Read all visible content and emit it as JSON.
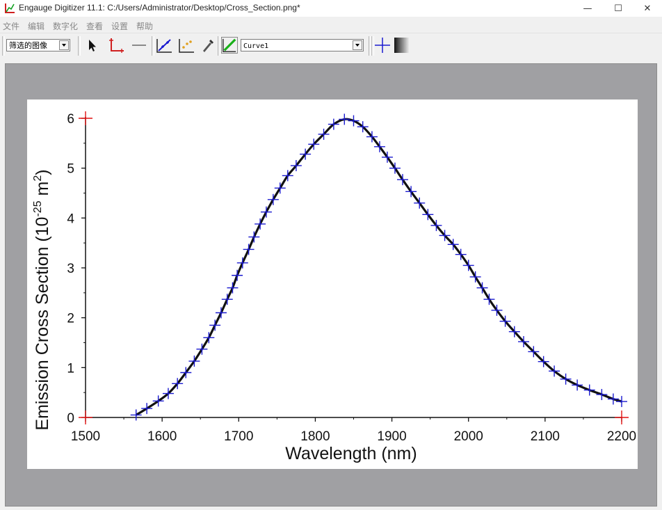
{
  "window": {
    "title": "Engauge Digitizer 11.1: C:/Users/Administrator/Desktop/Cross_Section.png*",
    "minimize_glyph": "—",
    "maximize_glyph": "☐",
    "close_glyph": "✕"
  },
  "menu": [
    {
      "label": "文件"
    },
    {
      "label": "编辑"
    },
    {
      "label": "数字化"
    },
    {
      "label": "查看"
    },
    {
      "label": "设置"
    },
    {
      "label": "帮助"
    }
  ],
  "toolbar": {
    "background_select": "筛选的图像",
    "curve_select": "Curve1",
    "icons": [
      "select-arrow-icon",
      "axis-point-icon",
      "scale-bar-icon",
      "curve-point-icon",
      "point-match-icon",
      "color-picker-icon",
      "segment-fill-icon",
      "checklist-guide-icon",
      "gradient-icon"
    ]
  },
  "colors": {
    "curve_marker": "#1a1ad0",
    "axis_marker": "#e01010",
    "curve_line": "#111111"
  },
  "chart_data": {
    "type": "line",
    "x_tick_labels": [
      "1500",
      "1600",
      "1700",
      "1800",
      "1900",
      "2000",
      "2100",
      "2200"
    ],
    "y_tick_labels": [
      "0",
      "1",
      "2",
      "3",
      "4",
      "5",
      "6"
    ],
    "x_ticks": [
      1500,
      1600,
      1700,
      1800,
      1900,
      2000,
      2100,
      2200
    ],
    "y_ticks": [
      0,
      1,
      2,
      3,
      4,
      5,
      6
    ],
    "xlabel": "Wavelength (nm)",
    "ylabel_parts": {
      "main": "Emission Cross Section (10",
      "exp": "-25",
      "unit": " m",
      "unit_exp": "2",
      "close": ")"
    },
    "xlim": [
      1500,
      2200
    ],
    "ylim": [
      0,
      6
    ],
    "axis_points": [
      [
        1500,
        6
      ],
      [
        1500,
        0
      ],
      [
        2200,
        0
      ]
    ],
    "curve_points": [
      [
        1566,
        0.05
      ],
      [
        1580,
        0.18
      ],
      [
        1595,
        0.33
      ],
      [
        1608,
        0.48
      ],
      [
        1620,
        0.68
      ],
      [
        1631,
        0.9
      ],
      [
        1642,
        1.13
      ],
      [
        1652,
        1.37
      ],
      [
        1661,
        1.6
      ],
      [
        1669,
        1.85
      ],
      [
        1677,
        2.1
      ],
      [
        1685,
        2.37
      ],
      [
        1692,
        2.6
      ],
      [
        1698,
        2.85
      ],
      [
        1705,
        3.1
      ],
      [
        1713,
        3.37
      ],
      [
        1720,
        3.62
      ],
      [
        1728,
        3.88
      ],
      [
        1736,
        4.12
      ],
      [
        1745,
        4.37
      ],
      [
        1754,
        4.6
      ],
      [
        1764,
        4.85
      ],
      [
        1775,
        5.05
      ],
      [
        1787,
        5.28
      ],
      [
        1798,
        5.48
      ],
      [
        1811,
        5.68
      ],
      [
        1824,
        5.88
      ],
      [
        1838,
        5.98
      ],
      [
        1850,
        5.95
      ],
      [
        1862,
        5.83
      ],
      [
        1874,
        5.63
      ],
      [
        1884,
        5.43
      ],
      [
        1894,
        5.22
      ],
      [
        1904,
        5.0
      ],
      [
        1914,
        4.77
      ],
      [
        1925,
        4.53
      ],
      [
        1936,
        4.3
      ],
      [
        1947,
        4.07
      ],
      [
        1958,
        3.85
      ],
      [
        1969,
        3.65
      ],
      [
        1980,
        3.47
      ],
      [
        1990,
        3.27
      ],
      [
        2000,
        3.05
      ],
      [
        2009,
        2.82
      ],
      [
        2018,
        2.6
      ],
      [
        2027,
        2.37
      ],
      [
        2037,
        2.15
      ],
      [
        2048,
        1.93
      ],
      [
        2060,
        1.72
      ],
      [
        2072,
        1.52
      ],
      [
        2085,
        1.32
      ],
      [
        2098,
        1.12
      ],
      [
        2112,
        0.93
      ],
      [
        2127,
        0.77
      ],
      [
        2142,
        0.65
      ],
      [
        2158,
        0.55
      ],
      [
        2174,
        0.46
      ],
      [
        2189,
        0.37
      ],
      [
        2200,
        0.32
      ]
    ]
  }
}
